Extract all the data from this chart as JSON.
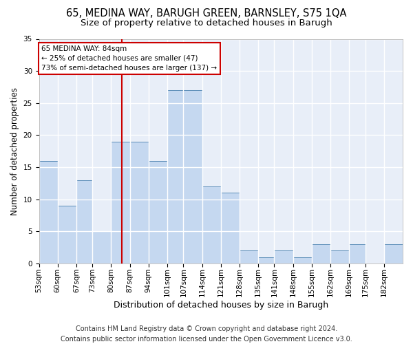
{
  "title1": "65, MEDINA WAY, BARUGH GREEN, BARNSLEY, S75 1QA",
  "title2": "Size of property relative to detached houses in Barugh",
  "xlabel": "Distribution of detached houses by size in Barugh",
  "ylabel": "Number of detached properties",
  "footer1": "Contains HM Land Registry data © Crown copyright and database right 2024.",
  "footer2": "Contains public sector information licensed under the Open Government Licence v3.0.",
  "annotation_line1": "65 MEDINA WAY: 84sqm",
  "annotation_line2": "← 25% of detached houses are smaller (47)",
  "annotation_line3": "73% of semi-detached houses are larger (137) →",
  "bar_color": "#c5d8f0",
  "bar_edge_color": "#5b8db8",
  "vline_color": "#cc0000",
  "vline_x": 84,
  "annotation_box_color": "#ffffff",
  "annotation_box_edge_color": "#cc0000",
  "bins": [
    53,
    60,
    67,
    73,
    80,
    87,
    94,
    101,
    107,
    114,
    121,
    128,
    135,
    141,
    148,
    155,
    162,
    169,
    175,
    182,
    189
  ],
  "counts": [
    16,
    9,
    13,
    5,
    19,
    19,
    16,
    27,
    27,
    12,
    11,
    2,
    1,
    2,
    1,
    3,
    2,
    3,
    0,
    3
  ],
  "ylim": [
    0,
    35
  ],
  "yticks": [
    0,
    5,
    10,
    15,
    20,
    25,
    30,
    35
  ],
  "bg_color": "#e8eef8",
  "grid_color": "#ffffff",
  "title1_fontsize": 10.5,
  "title2_fontsize": 9.5,
  "xlabel_fontsize": 9,
  "ylabel_fontsize": 8.5,
  "footer_fontsize": 7,
  "tick_fontsize": 7.5,
  "annot_fontsize": 7.5
}
